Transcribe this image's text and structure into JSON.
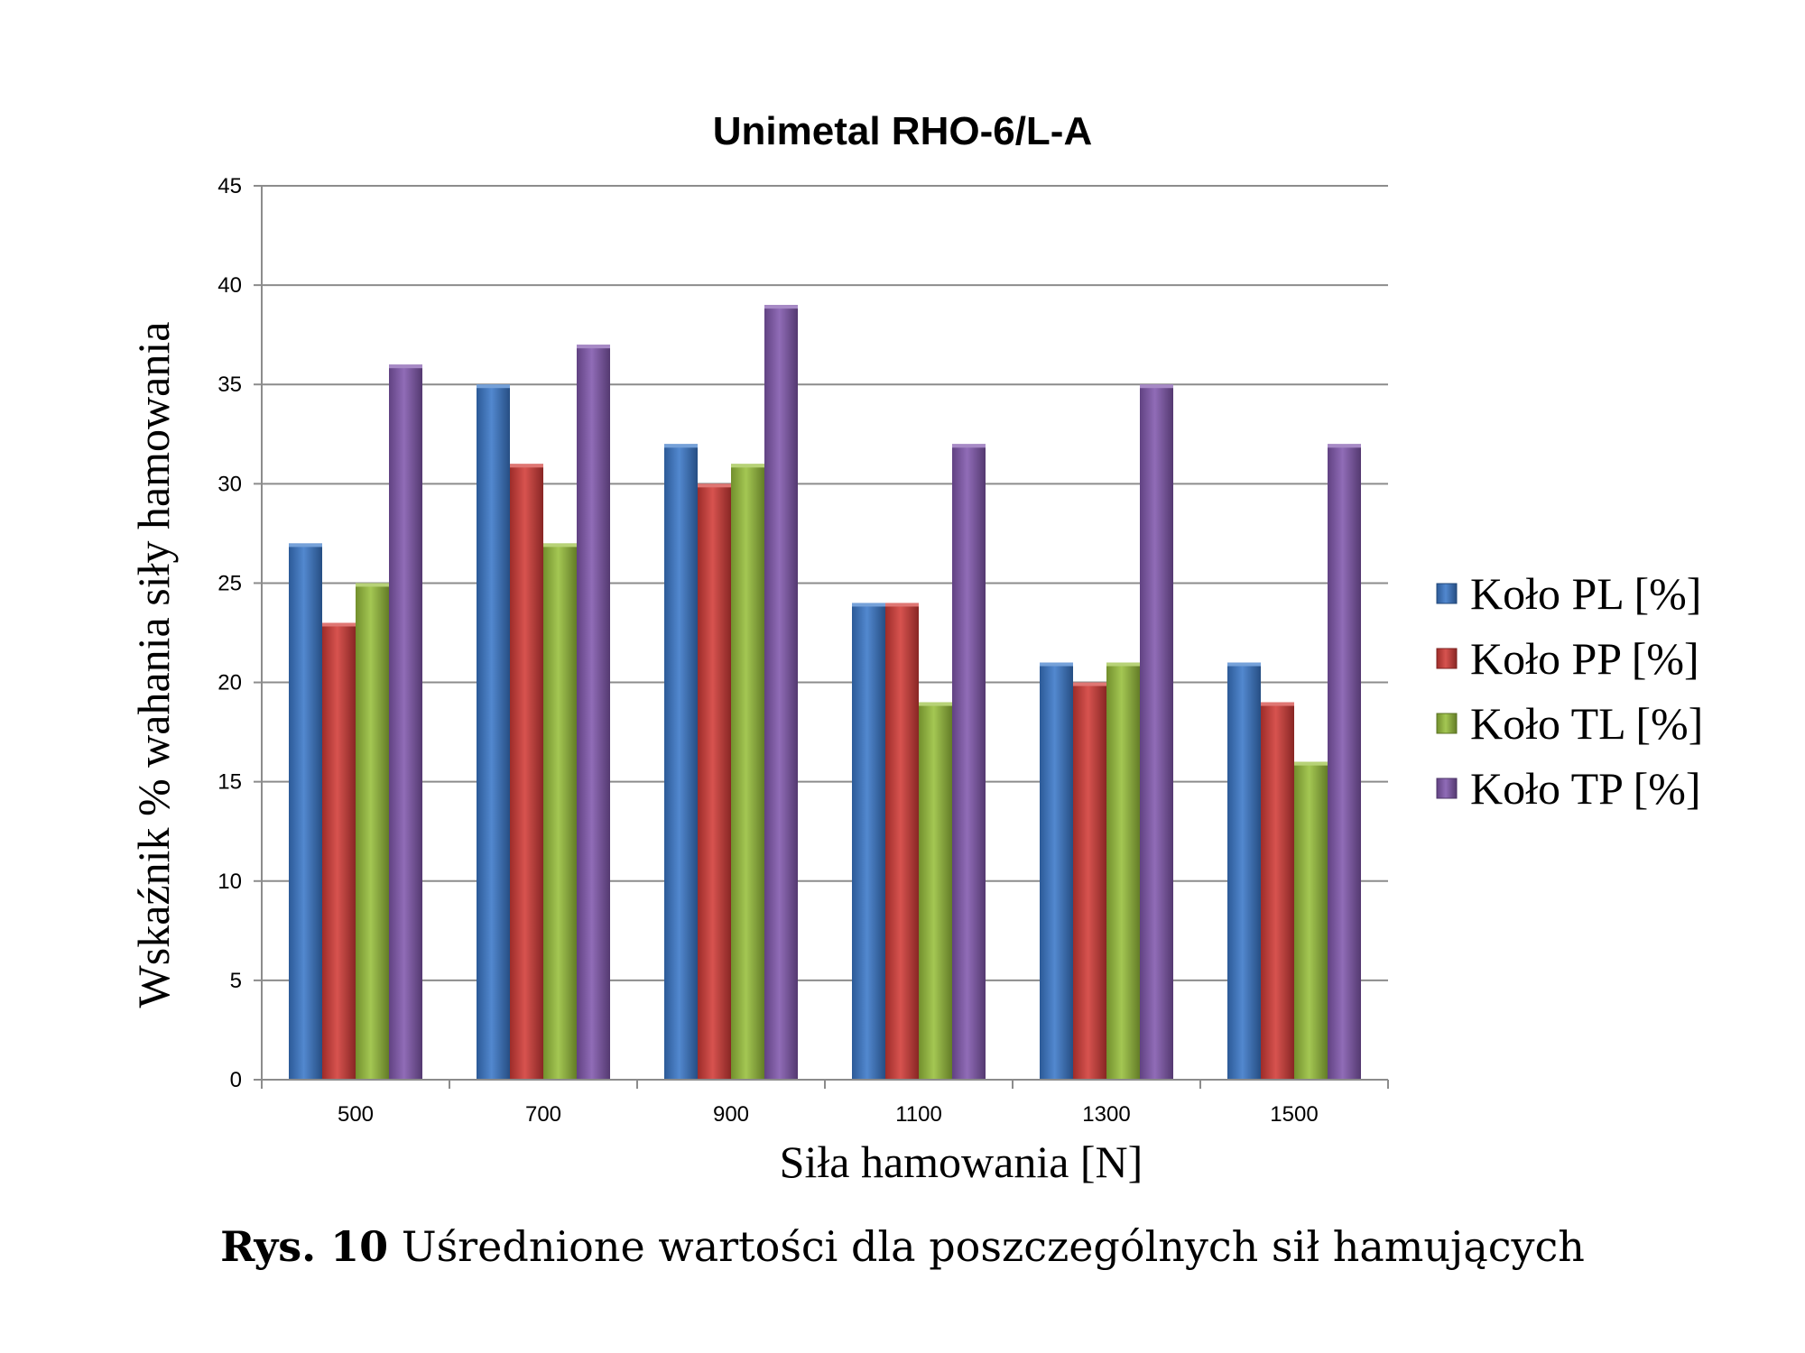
{
  "chart_data": {
    "type": "bar",
    "title": "Unimetal RHO-6/L-A",
    "xlabel": "Siła hamowania [N]",
    "ylabel": "Wskaźnik % wahania siły hamowania",
    "categories": [
      "500",
      "700",
      "900",
      "1100",
      "1300",
      "1500"
    ],
    "ylim": [
      0,
      45
    ],
    "yticks": [
      0,
      5,
      10,
      15,
      20,
      25,
      30,
      35,
      40,
      45
    ],
    "grid": true,
    "legend_position": "right",
    "series": [
      {
        "name": "Koło PL [%]",
        "color": "#3a78c9",
        "values": [
          27,
          35,
          32,
          24,
          21,
          21
        ]
      },
      {
        "name": "Koło PP [%]",
        "color": "#d13b37",
        "values": [
          23,
          31,
          30,
          24,
          20,
          19
        ]
      },
      {
        "name": "Koło TL [%]",
        "color": "#98bf3c",
        "values": [
          25,
          27,
          31,
          19,
          21,
          16
        ]
      },
      {
        "name": "Koło TP [%]",
        "color": "#8158ad",
        "values": [
          36,
          37,
          39,
          32,
          35,
          32
        ]
      }
    ]
  },
  "caption": {
    "label": "Rys. 10",
    "text": "Uśrednione wartości dla poszczególnych sił hamujących"
  }
}
